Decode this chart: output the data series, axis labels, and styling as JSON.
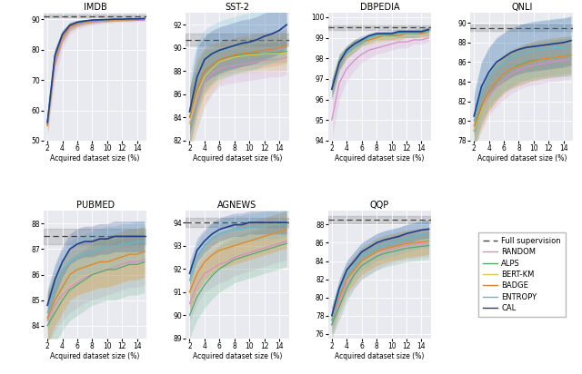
{
  "x": [
    2,
    3,
    4,
    5,
    6,
    7,
    8,
    9,
    10,
    11,
    12,
    13,
    14,
    15
  ],
  "colors": {
    "RANDOM": "#d48ec9",
    "ALPS": "#4dac6e",
    "BERT-KM": "#d4c84e",
    "BADGE": "#e08030",
    "ENTROPY": "#5bbcd4",
    "CAL": "#1f3f8c",
    "full_supervision": "#444444"
  },
  "datasets": {
    "IMDB": {
      "ylim": [
        50,
        92
      ],
      "yticks": [
        50,
        60,
        70,
        80,
        90
      ],
      "full_sup": 91.0,
      "full_sup_std": 0.4,
      "RANDOM": [
        55,
        75,
        83,
        87,
        88.2,
        88.7,
        89.0,
        89.2,
        89.3,
        89.4,
        89.5,
        89.5,
        89.6,
        89.6
      ],
      "RANDOM_std": [
        4,
        5,
        3,
        2,
        1.5,
        1.2,
        1.0,
        0.8,
        0.7,
        0.6,
        0.5,
        0.4,
        0.4,
        0.3
      ],
      "ALPS": [
        55,
        77,
        84,
        87.5,
        88.5,
        89.0,
        89.3,
        89.5,
        89.6,
        89.7,
        89.8,
        89.8,
        89.9,
        89.9
      ],
      "ALPS_std": [
        3,
        3,
        2,
        1.5,
        1.0,
        0.8,
        0.7,
        0.6,
        0.5,
        0.4,
        0.4,
        0.3,
        0.3,
        0.3
      ],
      "BERT-KM": [
        55,
        77,
        84,
        87.5,
        88.5,
        89.0,
        89.3,
        89.5,
        89.6,
        89.7,
        89.8,
        89.8,
        89.9,
        90.0
      ],
      "BERT-KM_std": [
        2.5,
        2.5,
        1.8,
        1.2,
        1.0,
        0.8,
        0.7,
        0.6,
        0.5,
        0.4,
        0.4,
        0.3,
        0.3,
        0.3
      ],
      "BADGE": [
        55,
        77,
        84,
        87.5,
        88.5,
        89.0,
        89.3,
        89.5,
        89.6,
        89.7,
        89.8,
        89.8,
        89.9,
        90.0
      ],
      "BADGE_std": [
        2.5,
        2.5,
        1.8,
        1.2,
        1.0,
        0.8,
        0.7,
        0.6,
        0.5,
        0.4,
        0.4,
        0.3,
        0.3,
        0.3
      ],
      "ENTROPY": [
        56,
        78,
        85,
        88,
        88.8,
        89.2,
        89.5,
        89.7,
        89.8,
        89.9,
        90.0,
        90.0,
        90.1,
        90.1
      ],
      "ENTROPY_std": [
        2,
        2.5,
        1.5,
        1.0,
        0.8,
        0.7,
        0.6,
        0.5,
        0.4,
        0.3,
        0.3,
        0.3,
        0.2,
        0.2
      ],
      "CAL": [
        56,
        78,
        85,
        88,
        89.0,
        89.4,
        89.7,
        89.8,
        89.9,
        90.0,
        90.0,
        90.1,
        90.1,
        90.2
      ],
      "CAL_std": [
        1.5,
        2,
        1.2,
        0.8,
        0.6,
        0.5,
        0.4,
        0.4,
        0.3,
        0.3,
        0.2,
        0.2,
        0.2,
        0.2
      ]
    },
    "SST-2": {
      "ylim": [
        82,
        93
      ],
      "yticks": [
        82,
        84,
        86,
        88,
        90,
        92
      ],
      "full_sup": 90.7,
      "full_sup_std": 0.5,
      "RANDOM": [
        83.5,
        85.5,
        87.0,
        87.8,
        88.2,
        88.4,
        88.5,
        88.6,
        88.7,
        88.8,
        88.9,
        89.0,
        89.0,
        89.2
      ],
      "RANDOM_std": [
        2.5,
        2.5,
        2,
        1.8,
        1.5,
        1.5,
        1.5,
        1.5,
        1.5,
        1.5,
        1.5,
        1.5,
        1.5,
        1.5
      ],
      "ALPS": [
        84,
        86.5,
        88.0,
        88.5,
        89.0,
        89.2,
        89.3,
        89.4,
        89.5,
        89.5,
        89.5,
        89.6,
        89.6,
        89.7
      ],
      "ALPS_std": [
        2.5,
        2,
        1.8,
        1.5,
        1.2,
        1.0,
        1.0,
        1.0,
        0.9,
        0.9,
        0.9,
        0.9,
        0.9,
        0.9
      ],
      "BERT-KM": [
        83.5,
        86,
        87.5,
        88.2,
        88.8,
        89.0,
        89.2,
        89.3,
        89.4,
        89.4,
        89.5,
        89.5,
        89.5,
        89.6
      ],
      "BERT-KM_std": [
        3,
        3,
        2.5,
        2,
        1.8,
        1.5,
        1.5,
        1.5,
        1.5,
        1.5,
        1.5,
        1.5,
        1.5,
        1.5
      ],
      "BADGE": [
        84,
        86.5,
        88.0,
        88.5,
        89.0,
        89.2,
        89.4,
        89.5,
        89.6,
        89.7,
        89.8,
        89.9,
        90.0,
        90.2
      ],
      "BADGE_std": [
        2.5,
        2.5,
        2,
        1.8,
        1.5,
        1.5,
        1.5,
        1.5,
        1.5,
        1.5,
        1.5,
        1.5,
        1.5,
        1.5
      ],
      "ENTROPY": [
        84.5,
        87.5,
        89.0,
        89.5,
        89.8,
        90.0,
        90.2,
        90.4,
        90.5,
        90.7,
        91.0,
        91.2,
        91.5,
        92.0
      ],
      "ENTROPY_std": [
        3,
        3,
        2.5,
        2.5,
        2.5,
        2.5,
        2.5,
        2.5,
        2.5,
        2.5,
        2.5,
        2.5,
        2.5,
        2.5
      ],
      "CAL": [
        84.5,
        87.5,
        89.0,
        89.5,
        89.8,
        90.0,
        90.2,
        90.4,
        90.5,
        90.7,
        91.0,
        91.2,
        91.5,
        92.0
      ],
      "CAL_std": [
        2,
        2.5,
        2,
        2,
        2,
        2,
        2,
        2,
        2,
        2,
        2,
        2,
        2,
        2
      ]
    },
    "DBPEDIA": {
      "ylim": [
        94,
        100.2
      ],
      "yticks": [
        94,
        95,
        96,
        97,
        98,
        99,
        100
      ],
      "full_sup": 99.5,
      "full_sup_std": 0.1,
      "RANDOM": [
        95.0,
        96.8,
        97.5,
        97.9,
        98.2,
        98.4,
        98.5,
        98.6,
        98.7,
        98.8,
        98.8,
        98.9,
        98.9,
        99.0
      ],
      "RANDOM_std": [
        1.0,
        0.8,
        0.6,
        0.5,
        0.4,
        0.4,
        0.3,
        0.3,
        0.3,
        0.3,
        0.3,
        0.2,
        0.2,
        0.2
      ],
      "ALPS": [
        96.5,
        97.8,
        98.3,
        98.6,
        98.8,
        99.0,
        99.1,
        99.1,
        99.1,
        99.2,
        99.2,
        99.2,
        99.3,
        99.3
      ],
      "ALPS_std": [
        0.5,
        0.4,
        0.3,
        0.3,
        0.2,
        0.2,
        0.2,
        0.2,
        0.2,
        0.2,
        0.2,
        0.2,
        0.2,
        0.2
      ],
      "BERT-KM": [
        96.5,
        97.8,
        98.3,
        98.6,
        98.8,
        98.9,
        99.0,
        99.0,
        99.1,
        99.1,
        99.2,
        99.2,
        99.2,
        99.2
      ],
      "BERT-KM_std": [
        0.5,
        0.4,
        0.3,
        0.3,
        0.2,
        0.2,
        0.2,
        0.2,
        0.2,
        0.2,
        0.2,
        0.2,
        0.2,
        0.2
      ],
      "BADGE": [
        96.5,
        97.8,
        98.3,
        98.6,
        98.8,
        98.9,
        99.0,
        99.1,
        99.1,
        99.1,
        99.2,
        99.2,
        99.2,
        99.3
      ],
      "BADGE_std": [
        0.5,
        0.4,
        0.3,
        0.3,
        0.2,
        0.2,
        0.2,
        0.2,
        0.2,
        0.2,
        0.2,
        0.2,
        0.2,
        0.2
      ],
      "ENTROPY": [
        96.5,
        97.8,
        98.3,
        98.6,
        98.8,
        99.0,
        99.1,
        99.1,
        99.2,
        99.2,
        99.2,
        99.2,
        99.3,
        99.3
      ],
      "ENTROPY_std": [
        0.5,
        0.4,
        0.3,
        0.3,
        0.2,
        0.2,
        0.2,
        0.2,
        0.2,
        0.2,
        0.2,
        0.2,
        0.2,
        0.2
      ],
      "CAL": [
        96.5,
        97.8,
        98.4,
        98.7,
        98.9,
        99.1,
        99.2,
        99.2,
        99.2,
        99.3,
        99.3,
        99.3,
        99.3,
        99.4
      ],
      "CAL_std": [
        0.4,
        0.3,
        0.2,
        0.2,
        0.2,
        0.1,
        0.1,
        0.1,
        0.1,
        0.1,
        0.1,
        0.1,
        0.1,
        0.1
      ]
    },
    "QNLI": {
      "ylim": [
        78,
        91
      ],
      "yticks": [
        78,
        80,
        82,
        84,
        86,
        88,
        90
      ],
      "full_sup": 89.5,
      "full_sup_std": 0.3,
      "RANDOM": [
        79,
        81,
        82.5,
        83.5,
        84.2,
        84.8,
        85.2,
        85.5,
        85.7,
        85.8,
        86.0,
        86.1,
        86.2,
        86.3
      ],
      "RANDOM_std": [
        2,
        2,
        2,
        2,
        2,
        2,
        2,
        2,
        2,
        2,
        2,
        2,
        2,
        2
      ],
      "ALPS": [
        79,
        81.5,
        83,
        84,
        84.8,
        85.3,
        85.7,
        86.0,
        86.2,
        86.3,
        86.4,
        86.5,
        86.6,
        86.7
      ],
      "ALPS_std": [
        1.8,
        1.8,
        1.8,
        1.8,
        1.8,
        1.8,
        1.8,
        1.8,
        1.8,
        1.8,
        1.8,
        1.8,
        1.8,
        1.8
      ],
      "BERT-KM": [
        79,
        81,
        83,
        84,
        84.8,
        85.3,
        85.6,
        85.9,
        86.1,
        86.3,
        86.4,
        86.5,
        86.6,
        86.7
      ],
      "BERT-KM_std": [
        2,
        2,
        2,
        2,
        2,
        2,
        2,
        2,
        2,
        2,
        2,
        2,
        2,
        2
      ],
      "BADGE": [
        79.5,
        81.5,
        83,
        84,
        84.8,
        85.3,
        85.6,
        85.9,
        86.1,
        86.3,
        86.4,
        86.5,
        86.6,
        86.7
      ],
      "BADGE_std": [
        2,
        2,
        2,
        2,
        2,
        2,
        2,
        2,
        2,
        2,
        2,
        2,
        2,
        2
      ],
      "ENTROPY": [
        80,
        83,
        84.5,
        85.3,
        86.0,
        86.4,
        86.8,
        87.0,
        87.2,
        87.3,
        87.4,
        87.5,
        87.5,
        87.6
      ],
      "ENTROPY_std": [
        3,
        3,
        3,
        3,
        3,
        3,
        3,
        3,
        3,
        3,
        3,
        3,
        3,
        3
      ],
      "CAL": [
        80.5,
        83.5,
        85,
        86,
        86.5,
        87.0,
        87.3,
        87.5,
        87.6,
        87.7,
        87.8,
        87.9,
        88.0,
        88.2
      ],
      "CAL_std": [
        2,
        2.5,
        2.5,
        2.5,
        2.5,
        2.5,
        2.5,
        2.5,
        2.5,
        2.5,
        2.5,
        2.5,
        2.5,
        2.5
      ]
    },
    "PUBMED": {
      "ylim": [
        83.5,
        88.5
      ],
      "yticks": [
        84,
        85,
        86,
        87,
        88
      ],
      "full_sup": 87.5,
      "full_sup_std": 0.3,
      "RANDOM": [
        84.2,
        84.8,
        85.2,
        85.5,
        85.7,
        85.9,
        86.0,
        86.1,
        86.2,
        86.3,
        86.4,
        86.5,
        86.5,
        86.6
      ],
      "RANDOM_std": [
        1.0,
        1.0,
        1.0,
        1.0,
        1.0,
        1.0,
        1.0,
        1.0,
        1.0,
        1.0,
        1.0,
        1.0,
        1.0,
        1.0
      ],
      "ALPS": [
        84.0,
        84.5,
        85.0,
        85.4,
        85.6,
        85.8,
        86.0,
        86.1,
        86.2,
        86.2,
        86.3,
        86.4,
        86.4,
        86.5
      ],
      "ALPS_std": [
        1.2,
        1.2,
        1.2,
        1.2,
        1.2,
        1.2,
        1.2,
        1.2,
        1.2,
        1.2,
        1.2,
        1.2,
        1.2,
        1.2
      ],
      "BERT-KM": [
        84.3,
        85.0,
        85.5,
        86.0,
        86.2,
        86.3,
        86.4,
        86.5,
        86.5,
        86.6,
        86.7,
        86.8,
        86.8,
        86.9
      ],
      "BERT-KM_std": [
        1.0,
        1.0,
        1.0,
        1.0,
        1.0,
        1.0,
        1.0,
        1.0,
        1.0,
        1.0,
        1.0,
        1.0,
        1.0,
        1.0
      ],
      "BADGE": [
        84.3,
        85.0,
        85.5,
        86.0,
        86.2,
        86.3,
        86.4,
        86.5,
        86.5,
        86.6,
        86.7,
        86.8,
        86.8,
        86.9
      ],
      "BADGE_std": [
        1.0,
        1.0,
        1.0,
        1.0,
        1.0,
        1.0,
        1.0,
        1.0,
        1.0,
        1.0,
        1.0,
        1.0,
        1.0,
        1.0
      ],
      "ENTROPY": [
        84.5,
        85.5,
        86.2,
        86.5,
        86.7,
        86.8,
        86.9,
        87.0,
        87.1,
        87.1,
        87.2,
        87.2,
        87.3,
        87.3
      ],
      "ENTROPY_std": [
        0.8,
        0.8,
        0.8,
        0.8,
        0.8,
        0.8,
        0.8,
        0.8,
        0.8,
        0.8,
        0.8,
        0.8,
        0.8,
        0.8
      ],
      "CAL": [
        84.8,
        85.8,
        86.5,
        87.0,
        87.2,
        87.3,
        87.3,
        87.4,
        87.4,
        87.5,
        87.5,
        87.5,
        87.5,
        87.5
      ],
      "CAL_std": [
        0.6,
        0.6,
        0.6,
        0.6,
        0.6,
        0.6,
        0.6,
        0.6,
        0.6,
        0.6,
        0.6,
        0.6,
        0.6,
        0.6
      ]
    },
    "AGNEWS": {
      "ylim": [
        89,
        94.5
      ],
      "yticks": [
        89,
        90,
        91,
        92,
        93,
        94
      ],
      "full_sup": 94.0,
      "full_sup_std": 0.2,
      "RANDOM": [
        90.5,
        91.3,
        91.8,
        92.0,
        92.2,
        92.3,
        92.5,
        92.6,
        92.7,
        92.8,
        92.9,
        93.0,
        93.1,
        93.2
      ],
      "RANDOM_std": [
        0.8,
        0.8,
        0.8,
        0.8,
        0.8,
        0.8,
        0.8,
        0.8,
        0.8,
        0.8,
        0.8,
        0.8,
        0.8,
        0.8
      ],
      "ALPS": [
        90.0,
        90.8,
        91.3,
        91.7,
        92.0,
        92.2,
        92.4,
        92.5,
        92.6,
        92.7,
        92.8,
        92.9,
        93.0,
        93.1
      ],
      "ALPS_std": [
        1.0,
        1.0,
        1.0,
        1.0,
        1.0,
        1.0,
        1.0,
        1.0,
        1.0,
        1.0,
        1.0,
        1.0,
        1.0,
        1.0
      ],
      "BERT-KM": [
        91.0,
        91.8,
        92.3,
        92.6,
        92.8,
        92.9,
        93.0,
        93.1,
        93.2,
        93.3,
        93.4,
        93.5,
        93.6,
        93.7
      ],
      "BERT-KM_std": [
        0.8,
        0.8,
        0.8,
        0.8,
        0.8,
        0.8,
        0.8,
        0.8,
        0.8,
        0.8,
        0.8,
        0.8,
        0.8,
        0.8
      ],
      "BADGE": [
        91.0,
        91.8,
        92.3,
        92.6,
        92.8,
        92.9,
        93.0,
        93.1,
        93.2,
        93.3,
        93.4,
        93.5,
        93.6,
        93.7
      ],
      "BADGE_std": [
        0.8,
        0.8,
        0.8,
        0.8,
        0.8,
        0.8,
        0.8,
        0.8,
        0.8,
        0.8,
        0.8,
        0.8,
        0.8,
        0.8
      ],
      "ENTROPY": [
        91.5,
        92.5,
        93.0,
        93.3,
        93.5,
        93.6,
        93.7,
        93.7,
        93.8,
        93.8,
        93.9,
        93.9,
        93.9,
        94.0
      ],
      "ENTROPY_std": [
        0.6,
        0.6,
        0.6,
        0.6,
        0.6,
        0.6,
        0.6,
        0.6,
        0.6,
        0.6,
        0.6,
        0.6,
        0.6,
        0.6
      ],
      "CAL": [
        91.8,
        92.8,
        93.2,
        93.5,
        93.7,
        93.8,
        93.9,
        93.9,
        94.0,
        94.0,
        94.0,
        94.0,
        94.0,
        94.0
      ],
      "CAL_std": [
        0.5,
        0.5,
        0.5,
        0.5,
        0.5,
        0.5,
        0.5,
        0.5,
        0.5,
        0.5,
        0.5,
        0.5,
        0.5,
        0.5
      ]
    },
    "QQP": {
      "ylim": [
        75.5,
        89.5
      ],
      "yticks": [
        76,
        78,
        80,
        82,
        84,
        86,
        88
      ],
      "full_sup": 88.5,
      "full_sup_std": 0.4,
      "RANDOM": [
        77.0,
        79.5,
        81.5,
        82.5,
        83.5,
        84.0,
        84.5,
        85.0,
        85.3,
        85.5,
        85.7,
        85.8,
        85.9,
        86.0
      ],
      "RANDOM_std": [
        1.5,
        1.5,
        1.5,
        1.5,
        1.5,
        1.5,
        1.5,
        1.5,
        1.5,
        1.5,
        1.5,
        1.5,
        1.5,
        1.5
      ],
      "ALPS": [
        77.0,
        79.0,
        81.0,
        82.5,
        83.5,
        84.0,
        84.5,
        84.8,
        85.0,
        85.2,
        85.4,
        85.5,
        85.6,
        85.7
      ],
      "ALPS_std": [
        1.5,
        1.5,
        1.5,
        1.5,
        1.5,
        1.5,
        1.5,
        1.5,
        1.5,
        1.5,
        1.5,
        1.5,
        1.5,
        1.5
      ],
      "BERT-KM": [
        77.5,
        80.0,
        82.0,
        83.0,
        84.0,
        84.5,
        85.0,
        85.3,
        85.5,
        85.7,
        85.9,
        86.0,
        86.1,
        86.2
      ],
      "BERT-KM_std": [
        1.5,
        1.5,
        1.5,
        1.5,
        1.5,
        1.5,
        1.5,
        1.5,
        1.5,
        1.5,
        1.5,
        1.5,
        1.5,
        1.5
      ],
      "BADGE": [
        77.5,
        80.0,
        82.0,
        83.0,
        84.0,
        84.5,
        85.0,
        85.3,
        85.5,
        85.7,
        85.9,
        86.0,
        86.1,
        86.2
      ],
      "BADGE_std": [
        1.5,
        1.5,
        1.5,
        1.5,
        1.5,
        1.5,
        1.5,
        1.5,
        1.5,
        1.5,
        1.5,
        1.5,
        1.5,
        1.5
      ],
      "ENTROPY": [
        77.5,
        80.5,
        82.5,
        83.5,
        84.5,
        85.0,
        85.5,
        85.8,
        86.0,
        86.2,
        86.5,
        86.7,
        86.9,
        87.0
      ],
      "ENTROPY_std": [
        1.5,
        1.5,
        1.5,
        1.5,
        1.5,
        1.5,
        1.5,
        1.5,
        1.5,
        1.5,
        1.5,
        1.5,
        1.5,
        1.5
      ],
      "CAL": [
        78.0,
        81.0,
        83.0,
        84.0,
        85.0,
        85.5,
        86.0,
        86.3,
        86.5,
        86.7,
        87.0,
        87.2,
        87.4,
        87.5
      ],
      "CAL_std": [
        1.0,
        1.0,
        1.0,
        1.0,
        1.0,
        1.0,
        1.0,
        1.0,
        1.0,
        1.0,
        1.0,
        1.0,
        1.0,
        1.0
      ]
    }
  },
  "methods": [
    "RANDOM",
    "ALPS",
    "BERT-KM",
    "BADGE",
    "ENTROPY",
    "CAL"
  ],
  "bg_color": "#e8eaf0",
  "xlabel": "Acquired dataset size (%)"
}
